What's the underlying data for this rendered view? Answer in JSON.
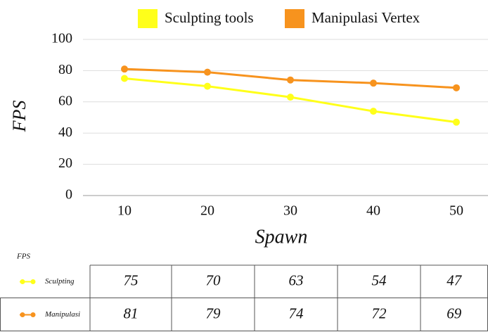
{
  "chart_data": {
    "type": "line",
    "categories": [
      "10",
      "20",
      "30",
      "40",
      "50"
    ],
    "series": [
      {
        "name": "Sculpting tools",
        "color": "#ffff1a",
        "values": [
          75,
          70,
          63,
          54,
          47
        ]
      },
      {
        "name": "Manipulasi Vertex",
        "color": "#f7931e",
        "values": [
          81,
          79,
          74,
          72,
          69
        ]
      }
    ],
    "ylim": [
      0,
      100
    ],
    "yticks": [
      0,
      20,
      40,
      60,
      80,
      100
    ],
    "grid": true,
    "xlabel": "Spawn",
    "ylabel": "FPS",
    "legend": "top",
    "data_table": {
      "title": "FPS",
      "row_labels": [
        "Sculpting",
        "Manipulasi"
      ]
    }
  }
}
